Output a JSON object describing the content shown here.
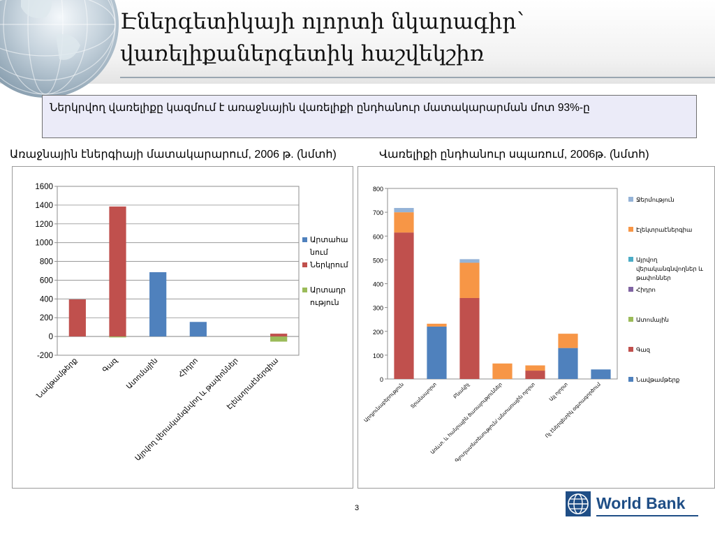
{
  "slide": {
    "title_line1": "Էներգետիկայի ոլորտի նկարագիր`",
    "title_line2": "վառելիքաներգետիկ հաշվեկշիռ",
    "callout": "Ներկրվող վառելիքը կազմում է առաջնային վառելիքի ընդհանուր մատակարարման  մոտ 93%-ը",
    "left_subtitle": "Առաջնային էներգիայի մատակարարում, 2006 թ. (նմտհ)",
    "right_subtitle": "Վառելիքի ընդհանուր սպառում, 2006թ. (նմտհ)",
    "page_number": "3",
    "logo_text": "World Bank"
  },
  "chart_data": [
    {
      "type": "bar",
      "stacked": true,
      "categories": [
        "Նավթամթերք",
        "Գազ",
        "Ատոմային",
        "Հիդրո",
        "Այրվող վերականգնվող և թափոններ",
        "Էլեկտրաէներգիա"
      ],
      "series": [
        {
          "name": "Արտահանում",
          "color": "#9bbb59",
          "values": [
            0,
            -10,
            0,
            0,
            0,
            -55
          ]
        },
        {
          "name": "Ներկրում",
          "color": "#c0504d",
          "values": [
            395,
            1385,
            0,
            0,
            0,
            30
          ]
        },
        {
          "name": "Արտադրություն",
          "color": "#4f81bd",
          "values": [
            0,
            0,
            685,
            155,
            0,
            0
          ]
        }
      ],
      "ylim": [
        -200,
        1600
      ],
      "yticks": [
        -200,
        0,
        200,
        400,
        600,
        800,
        1000,
        1200,
        1400,
        1600
      ],
      "grid": true,
      "legend": "right"
    },
    {
      "type": "bar",
      "stacked": true,
      "categories": [
        "Արդյունաբերություն",
        "Տրանսպորտ",
        "Բնակիչ",
        "Առևտ. և հանրային ծառայություններ",
        "Գյուղատնտեսություն/ անտառային ոլորտ",
        "Այլ ոլորտ",
        "Ոչ էներգետիկ օգտագործում"
      ],
      "series": [
        {
          "name": "Նավթամթերք",
          "color": "#4f81bd",
          "values": [
            0,
            220,
            0,
            0,
            0,
            130,
            40
          ]
        },
        {
          "name": "Գազ",
          "color": "#c0504d",
          "values": [
            615,
            0,
            340,
            0,
            35,
            0,
            0
          ]
        },
        {
          "name": "Ատոմային",
          "color": "#9bbb59",
          "values": [
            0,
            0,
            0,
            0,
            0,
            0,
            0
          ]
        },
        {
          "name": "Հիդրո",
          "color": "#8064a2",
          "values": [
            0,
            0,
            0,
            0,
            0,
            0,
            0
          ]
        },
        {
          "name": "Այրվող վերականգնվողներ և թափոններ",
          "color": "#4bacc6",
          "values": [
            0,
            0,
            0,
            0,
            0,
            0,
            0
          ]
        },
        {
          "name": "Էլեկտրաէներգիա",
          "color": "#f79646",
          "values": [
            85,
            12,
            148,
            65,
            22,
            60,
            0
          ]
        },
        {
          "name": "Ջերմություն",
          "color": "#95b3d7",
          "values": [
            18,
            0,
            15,
            0,
            0,
            0,
            0
          ]
        }
      ],
      "ylim": [
        0,
        800
      ],
      "yticks": [
        0,
        100,
        200,
        300,
        400,
        500,
        600,
        700,
        800
      ],
      "grid": false,
      "legend": "right"
    }
  ],
  "legend_left_lines": [
    [
      "Արտահա",
      "նում"
    ],
    [
      "Ներկրում"
    ],
    [
      "Արտադր",
      "ություն"
    ]
  ],
  "legend_right_lines": [
    [
      "Ջերմություն"
    ],
    [
      "Էլեկտրաէներգիա"
    ],
    [
      "Այրվող",
      "վերականգնվողներ և",
      "թափոններ"
    ],
    [
      "Հիդրո"
    ],
    [
      "Ատոմային"
    ],
    [
      "Գազ"
    ],
    [
      "Նավթամթերք"
    ]
  ]
}
